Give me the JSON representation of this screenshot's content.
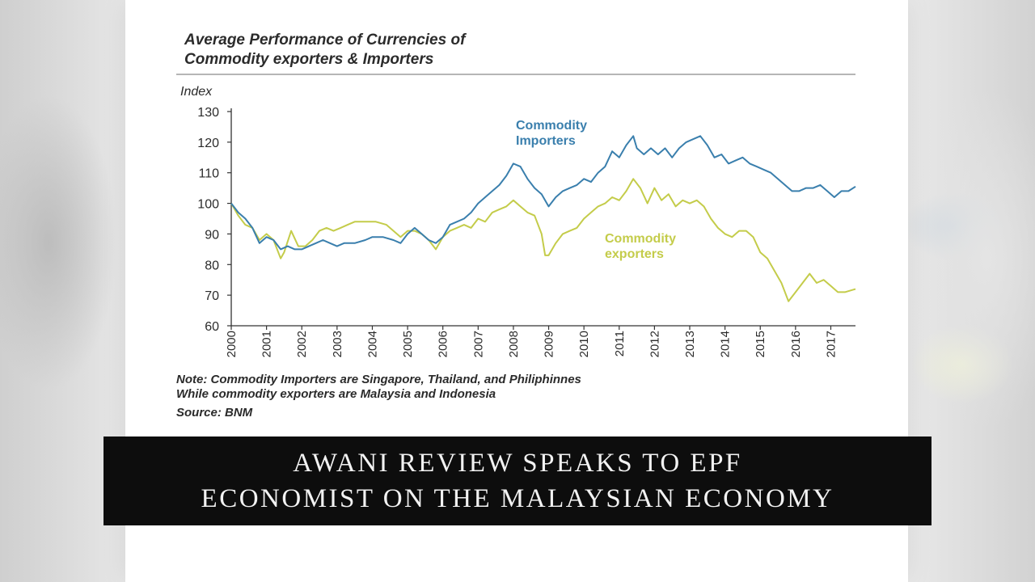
{
  "chart_data": {
    "type": "line",
    "title": "Average Performance of Currencies of\nCommodity exporters & Importers",
    "ylabel": "Index",
    "xlabel": "",
    "ylim": [
      60,
      130
    ],
    "xlim": [
      2000,
      2017.7
    ],
    "yticks": [
      60,
      70,
      80,
      90,
      100,
      110,
      120,
      130
    ],
    "xticks": [
      "2000",
      "2001",
      "2002",
      "2003",
      "2004",
      "2005",
      "2006",
      "2007",
      "2008",
      "2009",
      "2010",
      "2011",
      "2012",
      "2013",
      "2014",
      "2015",
      "2016",
      "2017"
    ],
    "grid": false,
    "series": [
      {
        "name": "Commodity Importers",
        "label_lines": [
          "Commodity",
          "Importers"
        ],
        "color": "#3a7fad",
        "points": [
          [
            2000.0,
            100
          ],
          [
            2000.2,
            97
          ],
          [
            2000.4,
            95
          ],
          [
            2000.6,
            92
          ],
          [
            2000.8,
            87
          ],
          [
            2001.0,
            89
          ],
          [
            2001.2,
            88
          ],
          [
            2001.4,
            85
          ],
          [
            2001.6,
            86
          ],
          [
            2001.8,
            85
          ],
          [
            2002.0,
            85
          ],
          [
            2002.2,
            86
          ],
          [
            2002.4,
            87
          ],
          [
            2002.6,
            88
          ],
          [
            2002.8,
            87
          ],
          [
            2003.0,
            86
          ],
          [
            2003.2,
            87
          ],
          [
            2003.5,
            87
          ],
          [
            2003.8,
            88
          ],
          [
            2004.0,
            89
          ],
          [
            2004.3,
            89
          ],
          [
            2004.6,
            88
          ],
          [
            2004.8,
            87
          ],
          [
            2005.0,
            90
          ],
          [
            2005.2,
            92
          ],
          [
            2005.4,
            90
          ],
          [
            2005.6,
            88
          ],
          [
            2005.8,
            87
          ],
          [
            2006.0,
            89
          ],
          [
            2006.2,
            93
          ],
          [
            2006.4,
            94
          ],
          [
            2006.6,
            95
          ],
          [
            2006.8,
            97
          ],
          [
            2007.0,
            100
          ],
          [
            2007.2,
            102
          ],
          [
            2007.4,
            104
          ],
          [
            2007.6,
            106
          ],
          [
            2007.8,
            109
          ],
          [
            2008.0,
            113
          ],
          [
            2008.2,
            112
          ],
          [
            2008.4,
            108
          ],
          [
            2008.6,
            105
          ],
          [
            2008.8,
            103
          ],
          [
            2009.0,
            99
          ],
          [
            2009.2,
            102
          ],
          [
            2009.4,
            104
          ],
          [
            2009.6,
            105
          ],
          [
            2009.8,
            106
          ],
          [
            2010.0,
            108
          ],
          [
            2010.2,
            107
          ],
          [
            2010.4,
            110
          ],
          [
            2010.6,
            112
          ],
          [
            2010.8,
            117
          ],
          [
            2011.0,
            115
          ],
          [
            2011.2,
            119
          ],
          [
            2011.4,
            122
          ],
          [
            2011.5,
            118
          ],
          [
            2011.7,
            116
          ],
          [
            2011.9,
            118
          ],
          [
            2012.1,
            116
          ],
          [
            2012.3,
            118
          ],
          [
            2012.5,
            115
          ],
          [
            2012.7,
            118
          ],
          [
            2012.9,
            120
          ],
          [
            2013.1,
            121
          ],
          [
            2013.3,
            122
          ],
          [
            2013.5,
            119
          ],
          [
            2013.7,
            115
          ],
          [
            2013.9,
            116
          ],
          [
            2014.1,
            113
          ],
          [
            2014.3,
            114
          ],
          [
            2014.5,
            115
          ],
          [
            2014.7,
            113
          ],
          [
            2014.9,
            112
          ],
          [
            2015.1,
            111
          ],
          [
            2015.3,
            110
          ],
          [
            2015.5,
            108
          ],
          [
            2015.7,
            106
          ],
          [
            2015.9,
            104
          ],
          [
            2016.1,
            104
          ],
          [
            2016.3,
            105
          ],
          [
            2016.5,
            105
          ],
          [
            2016.7,
            106
          ],
          [
            2016.9,
            104
          ],
          [
            2017.1,
            102
          ],
          [
            2017.3,
            104
          ],
          [
            2017.5,
            104
          ],
          [
            2017.7,
            105.5
          ]
        ]
      },
      {
        "name": "Commodity exporters",
        "label_lines": [
          "Commodity",
          "exporters"
        ],
        "color": "#c4cc4a",
        "points": [
          [
            2000.0,
            100
          ],
          [
            2000.2,
            96
          ],
          [
            2000.4,
            93
          ],
          [
            2000.6,
            92
          ],
          [
            2000.8,
            88
          ],
          [
            2001.0,
            90
          ],
          [
            2001.2,
            88
          ],
          [
            2001.4,
            82
          ],
          [
            2001.5,
            84
          ],
          [
            2001.7,
            91
          ],
          [
            2001.9,
            86
          ],
          [
            2002.1,
            86
          ],
          [
            2002.3,
            88
          ],
          [
            2002.5,
            91
          ],
          [
            2002.7,
            92
          ],
          [
            2002.9,
            91
          ],
          [
            2003.1,
            92
          ],
          [
            2003.3,
            93
          ],
          [
            2003.5,
            94
          ],
          [
            2003.8,
            94
          ],
          [
            2004.1,
            94
          ],
          [
            2004.4,
            93
          ],
          [
            2004.6,
            91
          ],
          [
            2004.8,
            89
          ],
          [
            2005.0,
            91
          ],
          [
            2005.2,
            91
          ],
          [
            2005.4,
            90
          ],
          [
            2005.6,
            88
          ],
          [
            2005.8,
            85
          ],
          [
            2006.0,
            89
          ],
          [
            2006.2,
            91
          ],
          [
            2006.4,
            92
          ],
          [
            2006.6,
            93
          ],
          [
            2006.8,
            92
          ],
          [
            2007.0,
            95
          ],
          [
            2007.2,
            94
          ],
          [
            2007.4,
            97
          ],
          [
            2007.6,
            98
          ],
          [
            2007.8,
            99
          ],
          [
            2008.0,
            101
          ],
          [
            2008.2,
            99
          ],
          [
            2008.4,
            97
          ],
          [
            2008.6,
            96
          ],
          [
            2008.8,
            90
          ],
          [
            2008.9,
            83
          ],
          [
            2009.0,
            83
          ],
          [
            2009.2,
            87
          ],
          [
            2009.4,
            90
          ],
          [
            2009.6,
            91
          ],
          [
            2009.8,
            92
          ],
          [
            2010.0,
            95
          ],
          [
            2010.2,
            97
          ],
          [
            2010.4,
            99
          ],
          [
            2010.6,
            100
          ],
          [
            2010.8,
            102
          ],
          [
            2011.0,
            101
          ],
          [
            2011.2,
            104
          ],
          [
            2011.4,
            108
          ],
          [
            2011.6,
            105
          ],
          [
            2011.8,
            100
          ],
          [
            2012.0,
            105
          ],
          [
            2012.2,
            101
          ],
          [
            2012.4,
            103
          ],
          [
            2012.6,
            99
          ],
          [
            2012.8,
            101
          ],
          [
            2013.0,
            100
          ],
          [
            2013.2,
            101
          ],
          [
            2013.4,
            99
          ],
          [
            2013.6,
            95
          ],
          [
            2013.8,
            92
          ],
          [
            2014.0,
            90
          ],
          [
            2014.2,
            89
          ],
          [
            2014.4,
            91
          ],
          [
            2014.6,
            91
          ],
          [
            2014.8,
            89
          ],
          [
            2015.0,
            84
          ],
          [
            2015.2,
            82
          ],
          [
            2015.4,
            78
          ],
          [
            2015.6,
            74
          ],
          [
            2015.8,
            68
          ],
          [
            2016.0,
            71
          ],
          [
            2016.2,
            74
          ],
          [
            2016.4,
            77
          ],
          [
            2016.6,
            74
          ],
          [
            2016.8,
            75
          ],
          [
            2017.0,
            73
          ],
          [
            2017.2,
            71
          ],
          [
            2017.4,
            71
          ],
          [
            2017.7,
            72
          ]
        ]
      }
    ]
  },
  "notes": {
    "line1": "Note: Commodity Importers are Singapore, Thailand, and Philiphinnes",
    "line2": "While commodity exporters are Malaysia and Indonesia",
    "source": "Source: BNM"
  },
  "caption": {
    "line1": "AWANI REVIEW SPEAKS TO EPF",
    "line2": "ECONOMIST ON THE MALAYSIAN ECONOMY"
  }
}
